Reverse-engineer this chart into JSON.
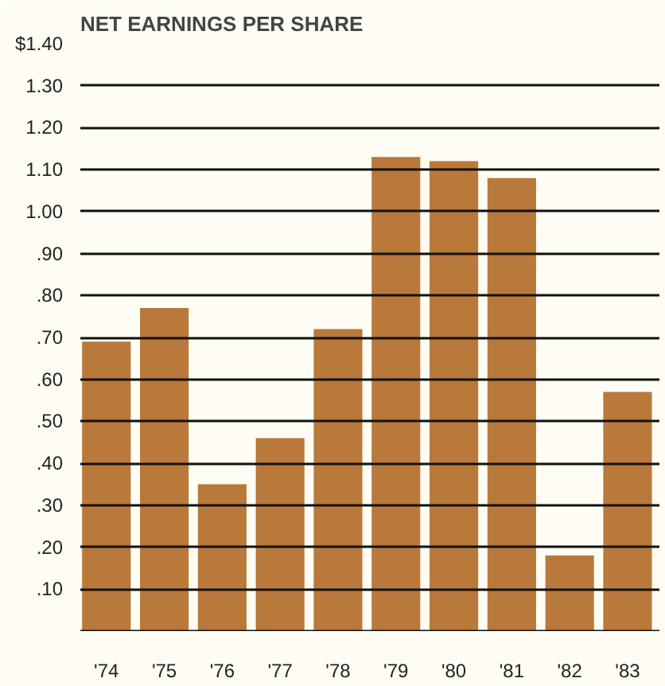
{
  "chart_data": {
    "type": "bar",
    "title": "NET EARNINGS PER SHARE",
    "categories": [
      "'74",
      "'75",
      "'76",
      "'77",
      "'78",
      "'79",
      "'80",
      "'81",
      "'82",
      "'83"
    ],
    "values": [
      0.69,
      0.77,
      0.35,
      0.46,
      0.72,
      1.13,
      1.12,
      1.08,
      0.18,
      0.57
    ],
    "color": "#b8793a",
    "ylim": [
      0,
      1.4
    ],
    "yticks": [
      {
        "value": 0.1,
        "label": ".10"
      },
      {
        "value": 0.2,
        "label": ".20"
      },
      {
        "value": 0.3,
        "label": ".30"
      },
      {
        "value": 0.4,
        "label": ".40"
      },
      {
        "value": 0.5,
        "label": ".50"
      },
      {
        "value": 0.6,
        "label": ".60"
      },
      {
        "value": 0.7,
        "label": ".70"
      },
      {
        "value": 0.8,
        "label": ".80"
      },
      {
        "value": 0.9,
        "label": ".90"
      },
      {
        "value": 1.0,
        "label": "1.00"
      },
      {
        "value": 1.1,
        "label": "1.10"
      },
      {
        "value": 1.2,
        "label": "1.20"
      },
      {
        "value": 1.3,
        "label": "1.30"
      },
      {
        "value": 1.4,
        "label": "$1.40"
      }
    ],
    "grid": "y"
  }
}
